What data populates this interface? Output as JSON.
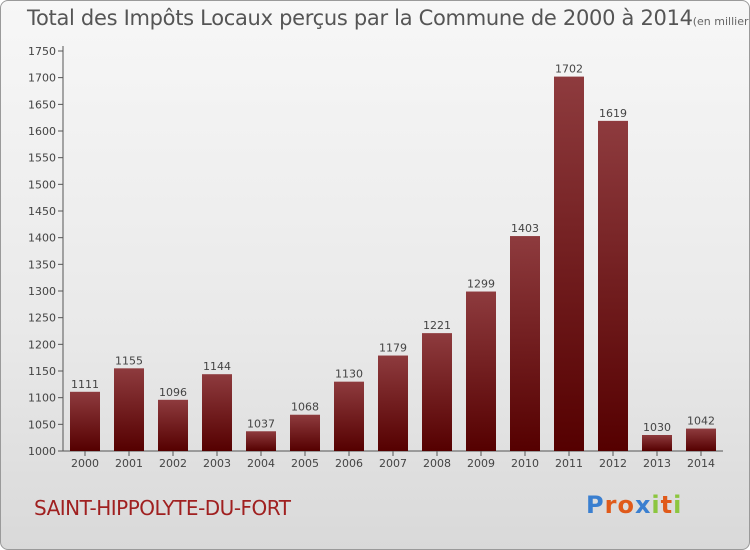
{
  "title": "Total des Impôts Locaux perçus par la Commune de 2000 à 2014",
  "unit_note": "(en milliers d'€)",
  "commune": "SAINT-HIPPOLYTE-DU-FORT",
  "logo": {
    "text": "Proxiti",
    "colors": [
      "#3a7fd0",
      "#e05a1a",
      "#e05a1a",
      "#3a7fd0",
      "#8cc63f",
      "#e05a1a",
      "#8cc63f"
    ]
  },
  "colors": {
    "bar_top": "#8e3b3e",
    "bar_bottom": "#550000",
    "commune_text": "#a02020"
  },
  "chart_data": {
    "type": "bar",
    "title": "Total des Impôts Locaux perçus par la Commune de 2000 à 2014",
    "categories": [
      "2000",
      "2001",
      "2002",
      "2003",
      "2004",
      "2005",
      "2006",
      "2007",
      "2008",
      "2009",
      "2010",
      "2011",
      "2012",
      "2013",
      "2014"
    ],
    "values": [
      1111,
      1155,
      1096,
      1144,
      1037,
      1068,
      1130,
      1179,
      1221,
      1299,
      1403,
      1702,
      1619,
      1030,
      1042
    ],
    "ylim": [
      1000,
      1750
    ],
    "yticks": [
      1000,
      1050,
      1100,
      1150,
      1200,
      1250,
      1300,
      1350,
      1400,
      1450,
      1500,
      1550,
      1600,
      1650,
      1700,
      1750
    ],
    "grid": false,
    "data_labels": true
  }
}
